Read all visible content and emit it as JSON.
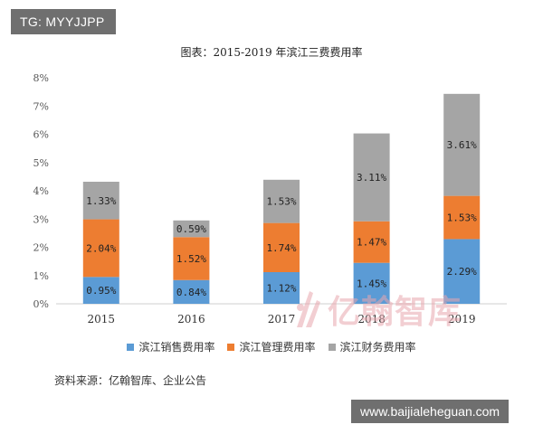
{
  "overlay": {
    "tg_label": "TG: MYYJJPP",
    "site_label": "www.baijialeheguan.com"
  },
  "source_note": "资料来源：亿翰智库、企业公告",
  "watermark": {
    "text": "亿翰智库",
    "icon": "yihan-logo-icon",
    "color": "#e9a7ae"
  },
  "chart_data": {
    "type": "bar",
    "stacked": true,
    "title": "图表：2015-2019 年滨江三费费用率",
    "categories": [
      "2015",
      "2016",
      "2017",
      "2018",
      "2019"
    ],
    "ylim": [
      0,
      8
    ],
    "y_ticks": [
      "0%",
      "1%",
      "2%",
      "3%",
      "4%",
      "5%",
      "6%",
      "7%",
      "8%"
    ],
    "legend_position": "bottom",
    "grid": false,
    "series": [
      {
        "name": "滨江销售费用率",
        "color": "#5b9bd5",
        "values": [
          0.95,
          0.84,
          1.12,
          1.45,
          2.29
        ],
        "labels": [
          "0.95%",
          "0.84%",
          "1.12%",
          "1.45%",
          "2.29%"
        ]
      },
      {
        "name": "滨江管理费用率",
        "color": "#ed7d31",
        "values": [
          2.04,
          1.52,
          1.74,
          1.47,
          1.53
        ],
        "labels": [
          "2.04%",
          "1.52%",
          "1.74%",
          "1.47%",
          "1.53%"
        ]
      },
      {
        "name": "滨江财务费用率",
        "color": "#a5a5a5",
        "values": [
          1.33,
          0.59,
          1.53,
          3.11,
          3.61
        ],
        "labels": [
          "1.33%",
          "0.59%",
          "1.53%",
          "3.11%",
          "3.61%"
        ]
      }
    ]
  }
}
